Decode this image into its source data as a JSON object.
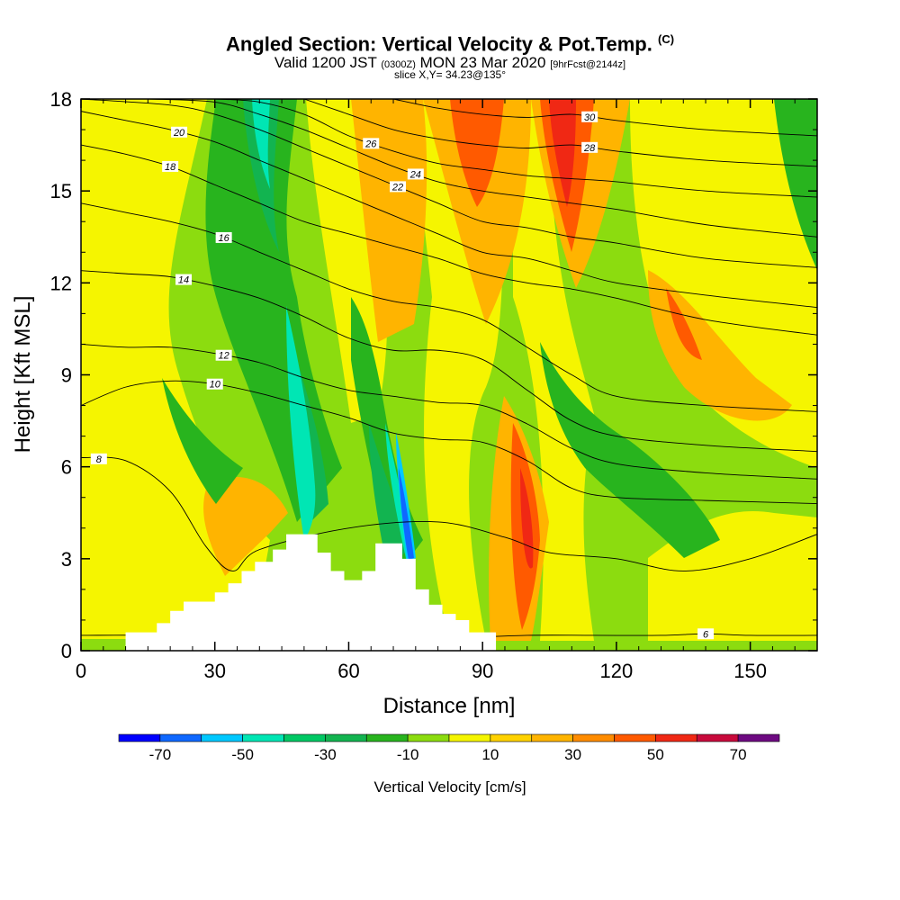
{
  "header": {
    "title": "Angled Section: Vertical Velocity & Pot.Temp.",
    "title_tag": "(C)",
    "valid_prefix": "Valid 1200 JST",
    "valid_utc": "(0300Z)",
    "valid_date": "MON 23 Mar 2020",
    "valid_fcst": "[9hrFcst@2144z]",
    "slice": "slice X,Y= 34.23@135°"
  },
  "chart_data": {
    "type": "heatmap",
    "xlabel": "Distance [nm]",
    "ylabel": "Height [Kft MSL]",
    "xlim": [
      0,
      165
    ],
    "ylim": [
      0,
      18
    ],
    "x_ticks": [
      0,
      30,
      60,
      90,
      120,
      150
    ],
    "y_ticks": [
      0,
      3,
      6,
      9,
      12,
      15,
      18
    ],
    "colorbar": {
      "label": "Vertical Velocity [cm/s]",
      "tick_values": [
        -70,
        -50,
        -30,
        -10,
        10,
        30,
        50,
        70
      ],
      "tick_labels": [
        "-70",
        "-50",
        "-30",
        "-10",
        "10",
        "30",
        "50",
        "70"
      ],
      "levels": [
        -80,
        -70,
        -60,
        -50,
        -40,
        -30,
        -20,
        -10,
        0,
        10,
        20,
        30,
        40,
        50,
        60,
        70,
        80
      ],
      "colors": [
        "#0000ff",
        "#0f68ff",
        "#00c8ff",
        "#00e6b4",
        "#00c864",
        "#12b450",
        "#28b41e",
        "#8cdc0f",
        "#f5f500",
        "#ffd200",
        "#ffb400",
        "#ff8c00",
        "#ff5a00",
        "#f02814",
        "#c80a3c",
        "#6e0a82"
      ]
    },
    "terrain": [
      [
        10,
        0.3
      ],
      [
        10,
        0.6
      ],
      [
        15,
        0.6
      ],
      [
        15,
        0.6
      ],
      [
        17,
        0.6
      ],
      [
        17,
        0.9
      ],
      [
        20,
        0.9
      ],
      [
        20,
        1.3
      ],
      [
        23,
        1.3
      ],
      [
        23,
        1.6
      ],
      [
        30,
        1.6
      ],
      [
        30,
        1.9
      ],
      [
        33,
        1.9
      ],
      [
        33,
        2.2
      ],
      [
        36,
        2.2
      ],
      [
        36,
        2.6
      ],
      [
        39,
        2.6
      ],
      [
        39,
        2.9
      ],
      [
        43,
        2.9
      ],
      [
        43,
        3.3
      ],
      [
        46,
        3.3
      ],
      [
        46,
        3.8
      ],
      [
        53,
        3.8
      ],
      [
        53,
        3.2
      ],
      [
        56,
        3.2
      ],
      [
        56,
        2.6
      ],
      [
        59,
        2.6
      ],
      [
        59,
        2.3
      ],
      [
        63,
        2.3
      ],
      [
        63,
        2.6
      ],
      [
        66,
        2.6
      ],
      [
        66,
        3.5
      ],
      [
        72,
        3.5
      ],
      [
        72,
        3.0
      ],
      [
        75,
        3.0
      ],
      [
        75,
        2.0
      ],
      [
        78,
        2.0
      ],
      [
        78,
        1.5
      ],
      [
        81,
        1.5
      ],
      [
        81,
        1.2
      ],
      [
        84,
        1.2
      ],
      [
        84,
        1.0
      ],
      [
        87,
        1.0
      ],
      [
        87,
        0.6
      ],
      [
        93,
        0.6
      ],
      [
        93,
        0.3
      ]
    ],
    "series": [
      {
        "value": 6,
        "x": [
          0,
          20,
          40,
          60,
          80,
          100,
          115,
          130,
          140,
          150,
          165
        ],
        "y": [
          0.5,
          0.5,
          0.4,
          0.4,
          0.4,
          0.5,
          0.5,
          0.5,
          0.55,
          0.5,
          0.5
        ],
        "label_at": 140
      },
      {
        "value": 8,
        "x": [
          0,
          10,
          20,
          28,
          34,
          40,
          60,
          80,
          95,
          105,
          120,
          135,
          150,
          165
        ],
        "y": [
          6.3,
          6.2,
          5.2,
          3.4,
          2.6,
          3.3,
          4.0,
          4.2,
          3.7,
          3.2,
          3.0,
          2.6,
          3.0,
          3.8
        ],
        "label_at": 4
      },
      {
        "value": 10,
        "x": [
          0,
          10,
          20,
          30,
          40,
          50,
          60,
          70,
          80,
          90,
          100,
          110,
          120,
          140,
          165
        ],
        "y": [
          8.0,
          8.6,
          8.8,
          8.7,
          8.4,
          8.0,
          7.6,
          7.1,
          6.9,
          6.8,
          6.2,
          5.3,
          5.0,
          4.9,
          4.8
        ],
        "label_at": 30
      },
      {
        "value": 12,
        "x": [
          0,
          10,
          20,
          30,
          40,
          50,
          60,
          70,
          80,
          90,
          100,
          110,
          120,
          140,
          165
        ],
        "y": [
          10.0,
          9.9,
          9.9,
          9.7,
          9.4,
          8.9,
          8.5,
          8.3,
          8.1,
          8.0,
          7.4,
          6.6,
          6.1,
          5.8,
          5.6
        ],
        "label_at": 32
      },
      {
        "value": 14,
        "x": [
          0,
          10,
          20,
          30,
          40,
          50,
          60,
          70,
          80,
          90,
          100,
          110,
          120,
          140,
          165
        ],
        "y": [
          12.4,
          12.3,
          12.2,
          11.9,
          11.5,
          10.9,
          10.2,
          9.8,
          9.8,
          9.5,
          8.5,
          7.5,
          7.0,
          6.7,
          6.5
        ],
        "label_at": 23
      },
      {
        "value": 16,
        "x": [
          0,
          10,
          20,
          30,
          40,
          50,
          60,
          70,
          80,
          90,
          100,
          110,
          120,
          140,
          165
        ],
        "y": [
          14.6,
          14.3,
          14.0,
          13.6,
          13.0,
          12.4,
          11.8,
          11.4,
          11.2,
          10.8,
          9.9,
          9.0,
          8.3,
          8.0,
          7.8
        ],
        "label_at": 32
      },
      {
        "value": 18,
        "x": [
          0,
          10,
          20,
          30,
          40,
          50,
          60,
          70,
          80,
          90,
          100,
          110,
          120,
          140,
          165
        ],
        "y": [
          16.5,
          16.2,
          15.8,
          15.2,
          14.6,
          14.0,
          13.6,
          13.2,
          12.8,
          12.3,
          12.0,
          11.8,
          11.5,
          10.8,
          10.3
        ],
        "label_at": 20
      },
      {
        "value": 20,
        "x": [
          0,
          10,
          20,
          30,
          40,
          50,
          60,
          70,
          80,
          90,
          100,
          110,
          120,
          140,
          165
        ],
        "y": [
          17.6,
          17.3,
          17.0,
          16.6,
          16.0,
          15.4,
          14.8,
          14.2,
          13.6,
          13.0,
          12.8,
          12.4,
          12.0,
          11.6,
          11.2
        ],
        "label_at": 22
      },
      {
        "value": 22,
        "x": [
          0,
          20,
          30,
          40,
          50,
          60,
          70,
          80,
          90,
          100,
          110,
          120,
          140,
          165
        ],
        "y": [
          18.0,
          17.8,
          17.5,
          17.0,
          16.4,
          15.8,
          15.2,
          14.6,
          14.0,
          13.8,
          13.5,
          13.3,
          12.8,
          12.5
        ],
        "label_at": 71
      },
      {
        "value": 24,
        "x": [
          15,
          30,
          40,
          50,
          60,
          70,
          80,
          90,
          100,
          110,
          120,
          140,
          165
        ],
        "y": [
          18.0,
          17.9,
          17.5,
          17.0,
          16.4,
          15.8,
          15.3,
          15.0,
          14.8,
          14.6,
          14.4,
          13.9,
          13.5
        ],
        "label_at": 75
      },
      {
        "value": 26,
        "x": [
          30,
          40,
          50,
          60,
          70,
          80,
          90,
          100,
          110,
          120,
          140,
          165
        ],
        "y": [
          18.0,
          17.9,
          17.5,
          16.8,
          16.3,
          15.9,
          15.7,
          15.5,
          15.4,
          15.3,
          15.0,
          14.8
        ],
        "label_at": 65
      },
      {
        "value": 28,
        "x": [
          50,
          60,
          70,
          80,
          90,
          100,
          110,
          120,
          140,
          165
        ],
        "y": [
          18.0,
          17.5,
          17.0,
          16.7,
          16.5,
          16.4,
          16.5,
          16.3,
          16.0,
          15.8
        ],
        "label_at": 114
      },
      {
        "value": 30,
        "x": [
          70,
          80,
          90,
          100,
          110,
          120,
          140,
          165
        ],
        "y": [
          18.0,
          17.7,
          17.5,
          17.4,
          17.5,
          17.3,
          17.0,
          16.8
        ],
        "label_at": 114
      }
    ]
  }
}
